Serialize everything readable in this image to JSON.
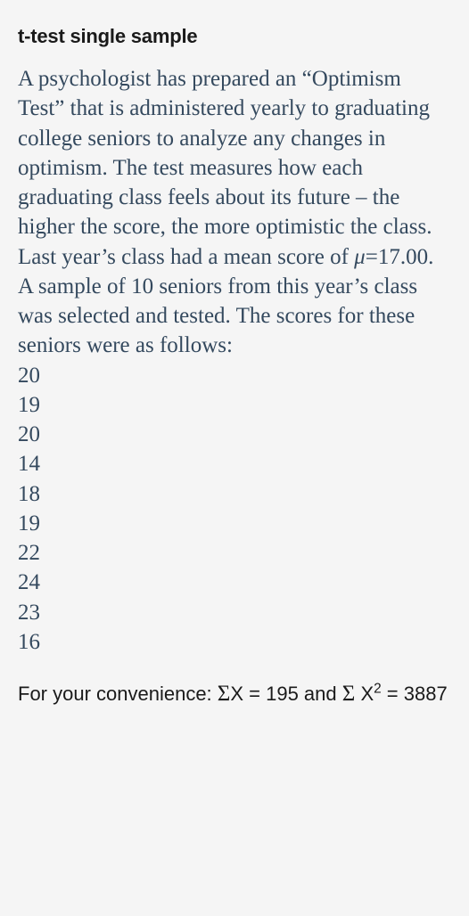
{
  "title": "t-test single sample",
  "intro_part1": "A psychologist has prepared an “Optimism Test” that is administered yearly to graduating college seniors to analyze any changes in optimism. The test measures how each graduating class feels about its future – the higher the score, the more optimistic the class. Last year’s class had a mean score of ",
  "mu_symbol": "μ",
  "mu_value": "=17.00. A sample of 10 seniors from this year’s class was selected and tested. The scores for these seniors were as follows:",
  "data_values": [
    "20",
    "19",
    "20",
    "14",
    "18",
    "19",
    "22",
    "24",
    "23",
    "16"
  ],
  "footer": {
    "prefix": "For your convenience: ",
    "sigma": "Σ",
    "x_label": "X = ",
    "sum_x": "195",
    "and_text": " and ",
    "x2_label_x": "X",
    "x2_sup": "2",
    "x2_eq": " = ",
    "sum_x2": "3887"
  },
  "colors": {
    "background": "#f5f5f5",
    "title_text": "#1a1a1a",
    "body_text": "#34495e"
  },
  "typography": {
    "title_fontsize": 22,
    "body_fontsize": 25,
    "footer_fontsize": 22,
    "body_font": "serif",
    "title_font": "sans-serif"
  }
}
